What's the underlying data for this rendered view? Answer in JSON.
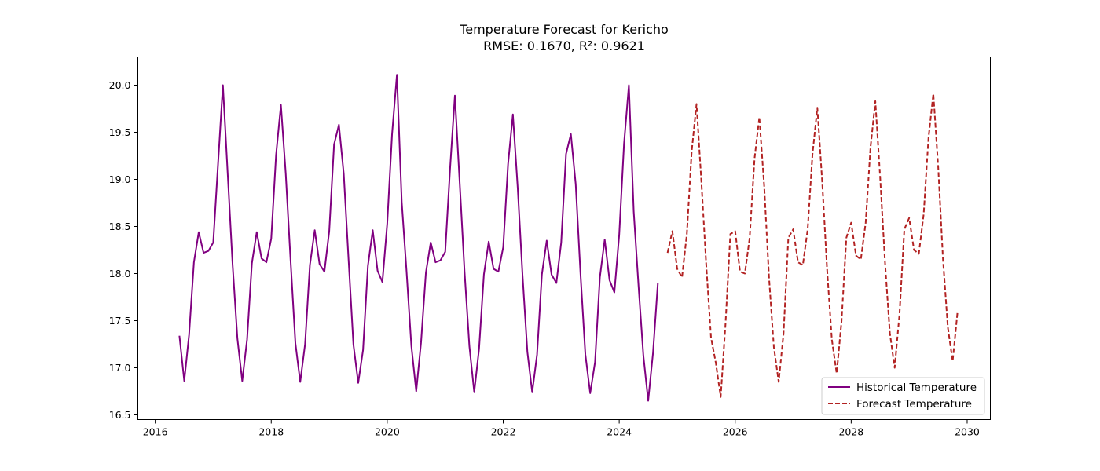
{
  "chart_data": {
    "type": "line",
    "title": "Temperature Forecast for Kericho",
    "subtitle": "RMSE: 0.1670, R²: 0.9621",
    "xlabel": "",
    "ylabel": "",
    "xlim": [
      2015.7,
      2030.4
    ],
    "ylim": [
      16.45,
      20.3
    ],
    "x_ticks": [
      2016,
      2018,
      2020,
      2022,
      2024,
      2026,
      2028,
      2030
    ],
    "x_tick_labels": [
      "2016",
      "2018",
      "2020",
      "2022",
      "2024",
      "2026",
      "2028",
      "2030"
    ],
    "y_ticks": [
      16.5,
      17.0,
      17.5,
      18.0,
      18.5,
      19.0,
      19.5,
      20.0
    ],
    "y_tick_labels": [
      "16.5",
      "17.0",
      "17.5",
      "18.0",
      "18.5",
      "19.0",
      "19.5",
      "20.0"
    ],
    "grid": false,
    "legend": "lower-right",
    "series": [
      {
        "name": "Historical Temperature",
        "color": "#800080",
        "style": "solid",
        "start": "2016-06",
        "step": "1 month",
        "values": [
          17.34,
          16.86,
          17.35,
          18.12,
          18.44,
          18.22,
          18.24,
          18.33,
          19.17,
          20.0,
          19.05,
          18.1,
          17.31,
          16.86,
          17.3,
          18.11,
          18.44,
          18.16,
          18.12,
          18.37,
          19.26,
          19.79,
          19.06,
          18.14,
          17.26,
          16.85,
          17.25,
          18.09,
          18.46,
          18.1,
          18.02,
          18.45,
          19.37,
          19.58,
          19.06,
          18.15,
          17.25,
          16.84,
          17.19,
          18.08,
          18.46,
          18.03,
          17.91,
          18.53,
          19.48,
          20.11,
          18.76,
          18.02,
          17.23,
          16.75,
          17.27,
          18.01,
          18.33,
          18.12,
          18.14,
          18.23,
          19.11,
          19.89,
          18.96,
          18.02,
          17.23,
          16.74,
          17.2,
          17.99,
          18.34,
          18.05,
          18.02,
          18.28,
          19.16,
          19.69,
          18.91,
          17.98,
          17.17,
          16.74,
          17.14,
          17.99,
          18.35,
          17.99,
          17.9,
          18.33,
          19.27,
          19.48,
          18.95,
          17.99,
          17.14,
          16.73,
          17.06,
          17.96,
          18.36,
          17.93,
          17.8,
          18.41,
          19.38,
          20.0,
          18.66,
          17.87,
          17.13,
          16.65,
          17.16,
          17.9
        ]
      },
      {
        "name": "Forecast Temperature",
        "color": "#b22222",
        "style": "dashed",
        "start": "2024-11",
        "step": "1 month",
        "values": [
          18.22,
          18.45,
          18.05,
          17.96,
          18.42,
          19.3,
          19.8,
          18.98,
          18.1,
          17.32,
          17.05,
          16.69,
          17.47,
          18.42,
          18.45,
          18.02,
          18.0,
          18.38,
          19.22,
          19.66,
          18.93,
          17.96,
          17.22,
          16.85,
          17.36,
          18.38,
          18.47,
          18.12,
          18.09,
          18.47,
          19.27,
          19.76,
          18.98,
          18.06,
          17.3,
          16.94,
          17.49,
          18.38,
          18.54,
          18.19,
          18.15,
          18.54,
          19.34,
          19.83,
          19.02,
          18.12,
          17.37,
          17.0,
          17.57,
          18.47,
          18.59,
          18.25,
          18.21,
          18.63,
          19.44,
          19.91,
          19.14,
          18.15,
          17.43,
          17.07,
          17.59
        ]
      }
    ]
  }
}
